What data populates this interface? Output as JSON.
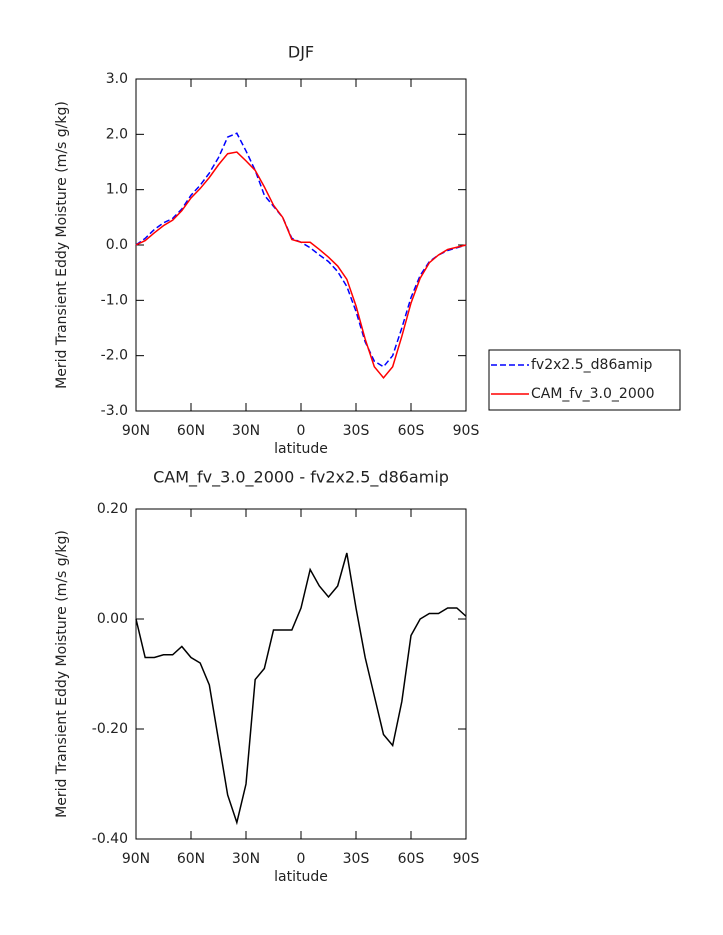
{
  "chart_data": [
    {
      "type": "line",
      "title": "DJF",
      "xlabel": "latitude",
      "ylabel": "Merid Transient Eddy Moisture (m/s g/kg)",
      "x": [
        90,
        85,
        80,
        75,
        70,
        65,
        60,
        55,
        50,
        45,
        40,
        35,
        30,
        25,
        20,
        15,
        10,
        5,
        0,
        -5,
        -10,
        -15,
        -20,
        -25,
        -30,
        -35,
        -40,
        -45,
        -50,
        -55,
        -60,
        -65,
        -70,
        -75,
        -80,
        -85,
        -90
      ],
      "series": [
        {
          "name": "fv2x2.5_d86amip",
          "color": "#0000ff",
          "dash": true,
          "values": [
            0,
            0.12,
            0.28,
            0.4,
            0.48,
            0.65,
            0.9,
            1.08,
            1.3,
            1.58,
            1.95,
            2.02,
            1.7,
            1.35,
            0.9,
            0.7,
            0.5,
            0.12,
            0.05,
            -0.05,
            -0.18,
            -0.3,
            -0.48,
            -0.75,
            -1.2,
            -1.75,
            -2.1,
            -2.2,
            -2.0,
            -1.5,
            -0.95,
            -0.55,
            -0.3,
            -0.18,
            -0.1,
            -0.05,
            0
          ]
        },
        {
          "name": "CAM_fv_3.0_2000",
          "color": "#ff0000",
          "dash": false,
          "values": [
            0,
            0.08,
            0.22,
            0.35,
            0.45,
            0.62,
            0.85,
            1.02,
            1.22,
            1.45,
            1.65,
            1.68,
            1.52,
            1.35,
            1.05,
            0.72,
            0.5,
            0.1,
            0.05,
            0.05,
            -0.08,
            -0.22,
            -0.38,
            -0.62,
            -1.1,
            -1.7,
            -2.2,
            -2.4,
            -2.2,
            -1.65,
            -1.05,
            -0.6,
            -0.32,
            -0.18,
            -0.08,
            -0.04,
            0
          ]
        }
      ],
      "xlim": [
        90,
        -90
      ],
      "xticks": [
        {
          "value": 90,
          "label": "90N"
        },
        {
          "value": 60,
          "label": "60N"
        },
        {
          "value": 30,
          "label": "30N"
        },
        0,
        {
          "value": -30,
          "label": "30S"
        },
        {
          "value": -60,
          "label": "60S"
        },
        {
          "value": -90,
          "label": "90S"
        }
      ],
      "ylim": [
        -3,
        3
      ],
      "yticks": [
        {
          "value": -3,
          "label": "-3.0"
        },
        {
          "value": -2,
          "label": "-2.0"
        },
        {
          "value": -1,
          "label": "-1.0"
        },
        {
          "value": 0,
          "label": "0.0"
        },
        {
          "value": 1,
          "label": "1.0"
        },
        {
          "value": 2,
          "label": "2.0"
        },
        {
          "value": 3,
          "label": "3.0"
        }
      ],
      "legend": "right"
    },
    {
      "type": "line",
      "title": "CAM_fv_3.0_2000 - fv2x2.5_d86amip",
      "xlabel": "latitude",
      "ylabel": "Merid Transient Eddy Moisture (m/s g/kg)",
      "x": [
        90,
        85,
        80,
        75,
        70,
        65,
        60,
        55,
        50,
        45,
        40,
        35,
        30,
        25,
        20,
        15,
        10,
        5,
        0,
        -5,
        -10,
        -15,
        -20,
        -25,
        -30,
        -35,
        -40,
        -45,
        -50,
        -55,
        -60,
        -65,
        -70,
        -75,
        -80,
        -85,
        -90
      ],
      "color": "#000000",
      "values": [
        0,
        -0.07,
        -0.07,
        -0.065,
        -0.065,
        -0.05,
        -0.07,
        -0.08,
        -0.12,
        -0.22,
        -0.32,
        -0.37,
        -0.3,
        -0.11,
        -0.09,
        -0.02,
        -0.02,
        -0.02,
        0.02,
        0.09,
        0.06,
        0.04,
        0.06,
        0.12,
        0.02,
        -0.07,
        -0.14,
        -0.21,
        -0.23,
        -0.15,
        -0.03,
        0,
        0.01,
        0.01,
        0.02,
        0.02,
        0.005
      ],
      "xlim": [
        90,
        -90
      ],
      "xticks": [
        {
          "value": 90,
          "label": "90N"
        },
        {
          "value": 60,
          "label": "60N"
        },
        {
          "value": 30,
          "label": "30N"
        },
        0,
        {
          "value": -30,
          "label": "30S"
        },
        {
          "value": -60,
          "label": "60S"
        },
        {
          "value": -90,
          "label": "90S"
        }
      ],
      "ylim": [
        -0.4,
        0.2
      ],
      "yticks": [
        {
          "value": -0.4,
          "label": "-0.40"
        },
        {
          "value": -0.2,
          "label": "-0.20"
        },
        {
          "value": 0,
          "label": "0.00"
        },
        {
          "value": 0.2,
          "label": "0.20"
        }
      ]
    }
  ]
}
